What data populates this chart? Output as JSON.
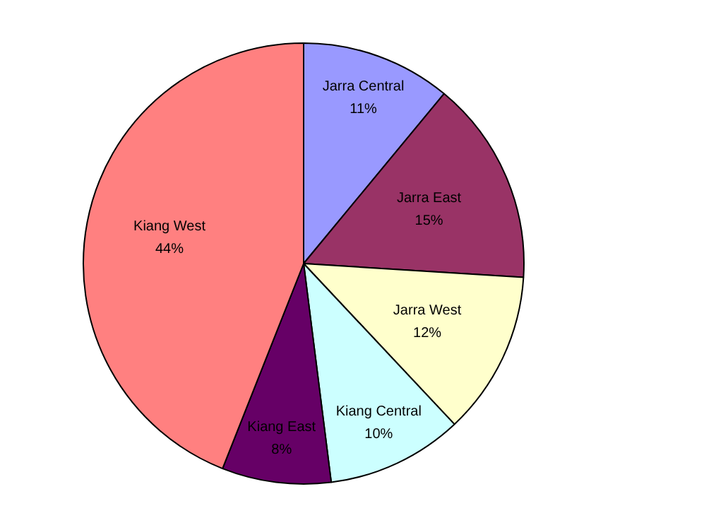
{
  "chart_data": {
    "type": "pie",
    "categories": [
      "Jarra Central",
      "Jarra East",
      "Jarra West",
      "Kiang Central",
      "Kiang East",
      "Kiang West"
    ],
    "values": [
      11,
      15,
      12,
      10,
      8,
      44
    ],
    "value_labels": [
      "11%",
      "15%",
      "12%",
      "10%",
      "8%",
      "44%"
    ],
    "colors": [
      "#9999ff",
      "#993366",
      "#ffffcc",
      "#ccffff",
      "#660066",
      "#ff8080"
    ],
    "legend": false
  }
}
